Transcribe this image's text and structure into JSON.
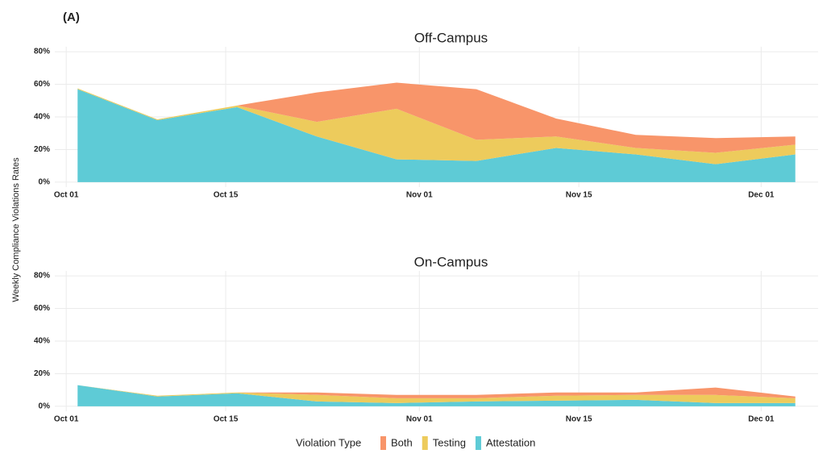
{
  "panel_label": "(A)",
  "y_label": "Weekly Compliance Violations Rates",
  "legend_title": "Violation Type",
  "chart_data": [
    {
      "type": "area",
      "stacked": true,
      "title": "Off-Campus",
      "x": [
        "Oct 02",
        "Oct 09",
        "Oct 16",
        "Oct 23",
        "Oct 30",
        "Nov 06",
        "Nov 13",
        "Nov 20",
        "Nov 27",
        "Dec 04"
      ],
      "series": [
        {
          "name": "Both",
          "color": "#f8956a",
          "values": [
            0,
            0,
            0,
            18,
            16,
            31,
            11,
            8,
            9,
            5
          ]
        },
        {
          "name": "Testing",
          "color": "#edcb5c",
          "values": [
            0.5,
            0.5,
            1,
            9,
            31,
            13,
            7,
            4,
            7,
            6
          ]
        },
        {
          "name": "Attestation",
          "color": "#5ecbd6",
          "values": [
            57,
            38,
            46,
            28,
            14,
            13,
            21,
            17,
            11,
            17
          ]
        }
      ],
      "xlim": [
        "Sep 30",
        "Dec 06"
      ],
      "xticks": [
        "Oct 01",
        "Oct 15",
        "Nov 01",
        "Nov 15",
        "Dec 01"
      ],
      "ylim": [
        -3,
        83
      ],
      "yticks": [
        {
          "value": 0,
          "label": "0%"
        },
        {
          "value": 20,
          "label": "20%"
        },
        {
          "value": 40,
          "label": "40%"
        },
        {
          "value": 60,
          "label": "60%"
        },
        {
          "value": 80,
          "label": "80%"
        }
      ],
      "grid": true
    },
    {
      "type": "area",
      "stacked": true,
      "title": "On-Campus",
      "x": [
        "Oct 02",
        "Oct 09",
        "Oct 16",
        "Oct 23",
        "Oct 30",
        "Nov 06",
        "Nov 13",
        "Nov 20",
        "Nov 27",
        "Dec 04"
      ],
      "series": [
        {
          "name": "Both",
          "color": "#f8956a",
          "values": [
            0,
            0,
            0,
            1.5,
            2,
            2,
            2,
            1.5,
            4.5,
            1
          ]
        },
        {
          "name": "Testing",
          "color": "#edcb5c",
          "values": [
            0,
            0.5,
            0.5,
            4,
            3,
            2,
            3,
            3,
            5,
            3
          ]
        },
        {
          "name": "Attestation",
          "color": "#5ecbd6",
          "values": [
            13,
            6,
            8,
            3,
            2,
            3,
            3.5,
            4,
            2,
            2
          ]
        }
      ],
      "xlim": [
        "Sep 30",
        "Dec 06"
      ],
      "xticks": [
        "Oct 01",
        "Oct 15",
        "Nov 01",
        "Nov 15",
        "Dec 01"
      ],
      "ylim": [
        -3,
        83
      ],
      "yticks": [
        {
          "value": 0,
          "label": "0%"
        },
        {
          "value": 20,
          "label": "20%"
        },
        {
          "value": 40,
          "label": "40%"
        },
        {
          "value": 60,
          "label": "60%"
        },
        {
          "value": 80,
          "label": "80%"
        }
      ],
      "grid": true
    }
  ]
}
